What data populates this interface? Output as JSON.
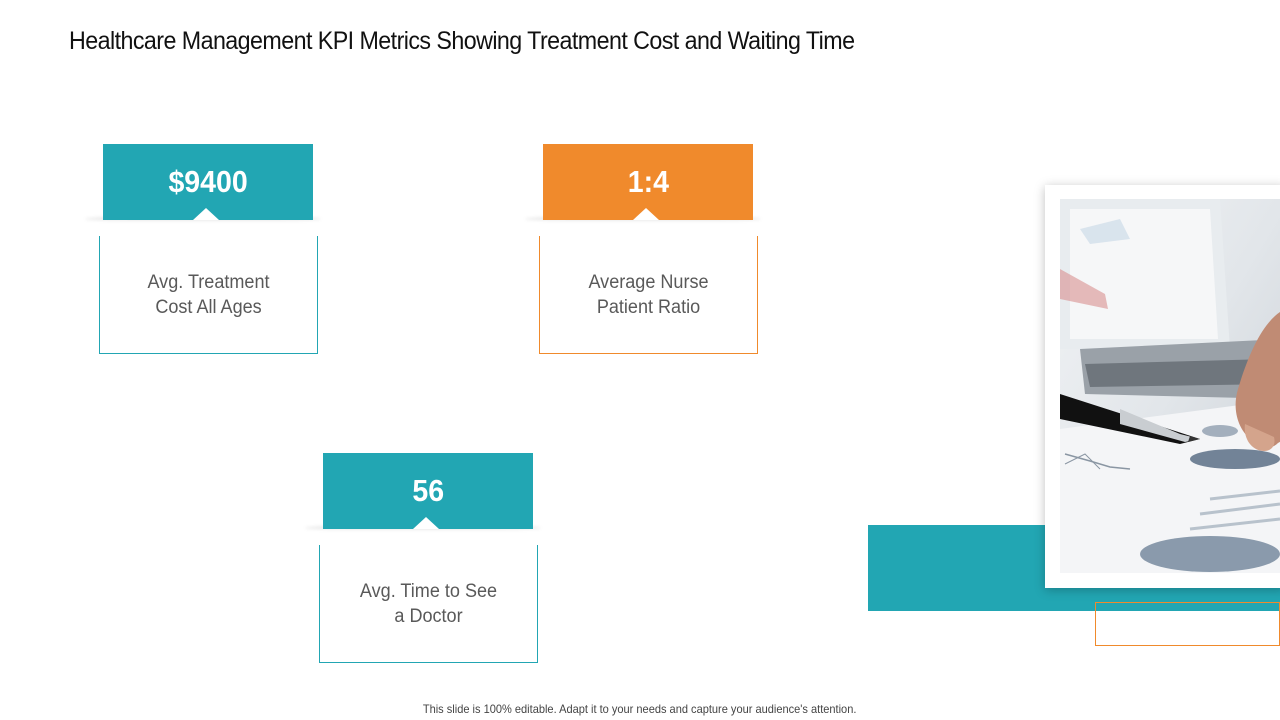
{
  "title": "Healthcare Management KPI Metrics Showing Treatment Cost and Waiting Time",
  "kpis": [
    {
      "value": "$9400",
      "label": "Avg. Treatment Cost All Ages",
      "color": "#22a6b3"
    },
    {
      "value": "1:4",
      "label": "Average Nurse Patient Ratio",
      "color": "#f08a2c"
    },
    {
      "value": "56",
      "label": "Avg. Time to See a Doctor",
      "color": "#22a6b3"
    }
  ],
  "footer": "This slide is 100% editable. Adapt it to your needs and capture your audience's attention.",
  "colors": {
    "accent_teal": "#22a6b3",
    "accent_orange": "#f08a2c"
  },
  "image": {
    "icon": "business-analysis-photo"
  }
}
